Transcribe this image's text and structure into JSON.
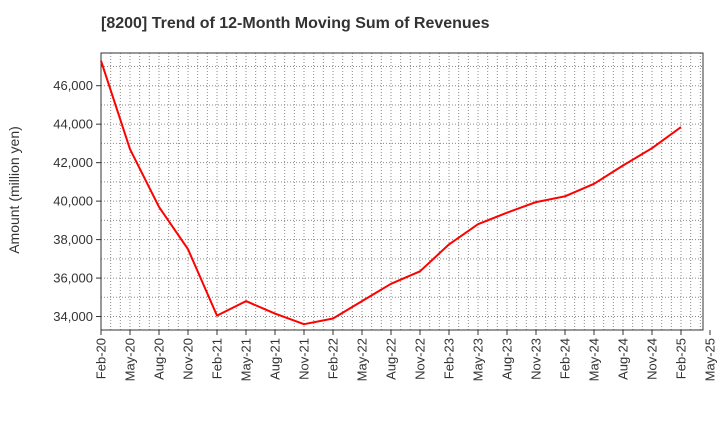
{
  "chart_data": {
    "type": "line",
    "title": "[8200]  Trend of 12-Month Moving Sum of Revenues",
    "xlabel": "",
    "ylabel": "Amount (million yen)",
    "x_ticks": [
      "Feb-20",
      "May-20",
      "Aug-20",
      "Nov-20",
      "Feb-21",
      "May-21",
      "Aug-21",
      "Nov-21",
      "Feb-22",
      "May-22",
      "Aug-22",
      "Nov-22",
      "Feb-23",
      "May-23",
      "Aug-23",
      "Nov-23",
      "Feb-24",
      "May-24",
      "Aug-24",
      "Nov-24",
      "Feb-25",
      "May-25"
    ],
    "y_ticks": [
      "34,000",
      "36,000",
      "38,000",
      "40,000",
      "42,000",
      "44,000",
      "46,000"
    ],
    "y_tick_values": [
      34000,
      36000,
      38000,
      40000,
      42000,
      44000,
      46000
    ],
    "ylim": [
      33300,
      47700
    ],
    "grid": true,
    "line_color": "#ff0000",
    "series": [
      {
        "x": [
          "Feb-20",
          "May-20",
          "Aug-20",
          "Nov-20",
          "Feb-21",
          "May-21",
          "Aug-21",
          "Nov-21",
          "Feb-22",
          "May-22",
          "Aug-22",
          "Nov-22",
          "Feb-23",
          "May-23",
          "Aug-23",
          "Nov-23",
          "Feb-24",
          "May-24",
          "Aug-24",
          "Nov-24",
          "Feb-25"
        ],
        "values": [
          47300,
          42700,
          39700,
          37500,
          34050,
          34800,
          34150,
          33600,
          33900,
          34800,
          35700,
          36350,
          37750,
          38800,
          39400,
          39950,
          40250,
          40900,
          41850,
          42750,
          43850
        ]
      }
    ]
  }
}
